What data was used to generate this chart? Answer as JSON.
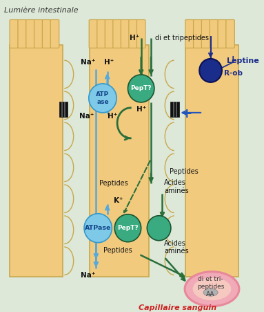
{
  "bg_color": "#dde8d8",
  "cell_color": "#f2ca7e",
  "cell_outline": "#c8a84b",
  "title_text": "Lumière intestinale",
  "caption_text": "Capillaire sanguin",
  "caption_color": "#cc2222",
  "leptine_color": "#1a2d8a",
  "leptine_text": "Leptine",
  "rob_text": "R-ob",
  "atpase_color": "#7ec8e8",
  "atpase_text": "ATP\nase",
  "atpase2_text": "ATPase",
  "pept_color": "#3aaa80",
  "pept_text": "PepT?",
  "green_circle_color": "#3aaa80",
  "arrow_blue": "#55aadd",
  "arrow_green": "#2a6e3a",
  "plus_color": "#2255bb",
  "blood_vessel_outer": "#e8889a",
  "blood_vessel_fill": "#f0aab8",
  "blood_vessel_inner": "#f5c8c0",
  "ion_color": "#111111",
  "villis_color": "#f2ca7e",
  "channel_color": "#222222"
}
